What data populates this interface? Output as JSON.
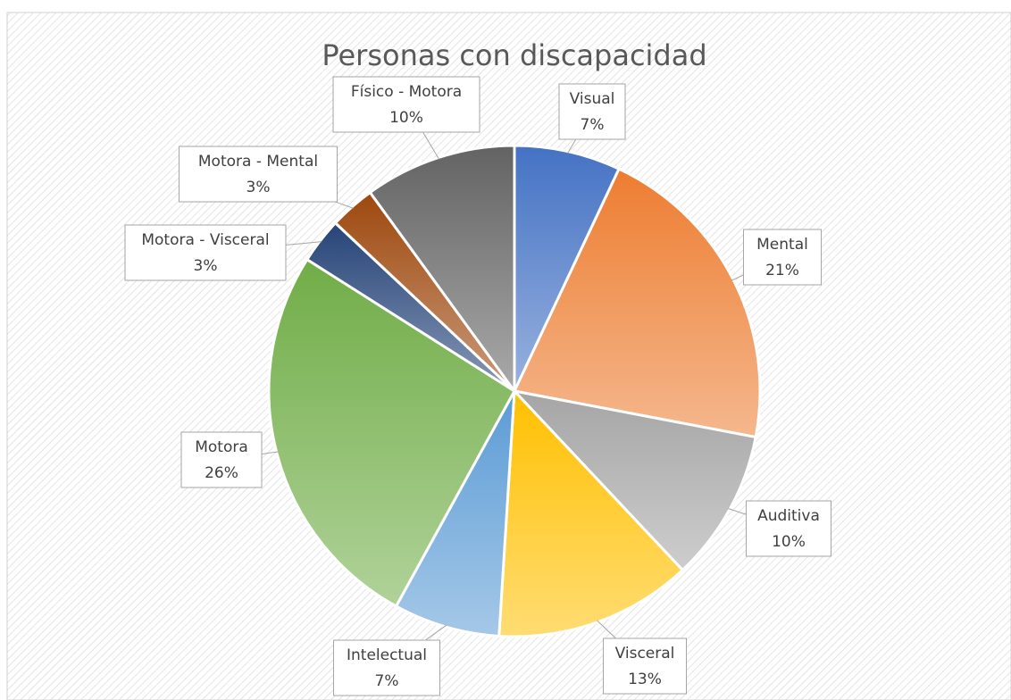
{
  "chart_data": {
    "type": "pie",
    "title": "Personas con discapacidad",
    "categories": [
      "Visual",
      "Mental",
      "Auditiva",
      "Visceral",
      "Intelectual",
      "Motora",
      "Motora - Visceral",
      "Motora - Mental",
      "Físico - Motora"
    ],
    "values": [
      7,
      21,
      10,
      13,
      7,
      26,
      3,
      3,
      10
    ],
    "value_labels": [
      "7%",
      "21%",
      "10%",
      "13%",
      "7%",
      "26%",
      "3%",
      "3%",
      "10%"
    ],
    "colors": [
      "#4472c4",
      "#ed7d31",
      "#a5a5a5",
      "#ffc000",
      "#5b9bd5",
      "#70ad47",
      "#264478",
      "#9e480e",
      "#636363"
    ]
  }
}
